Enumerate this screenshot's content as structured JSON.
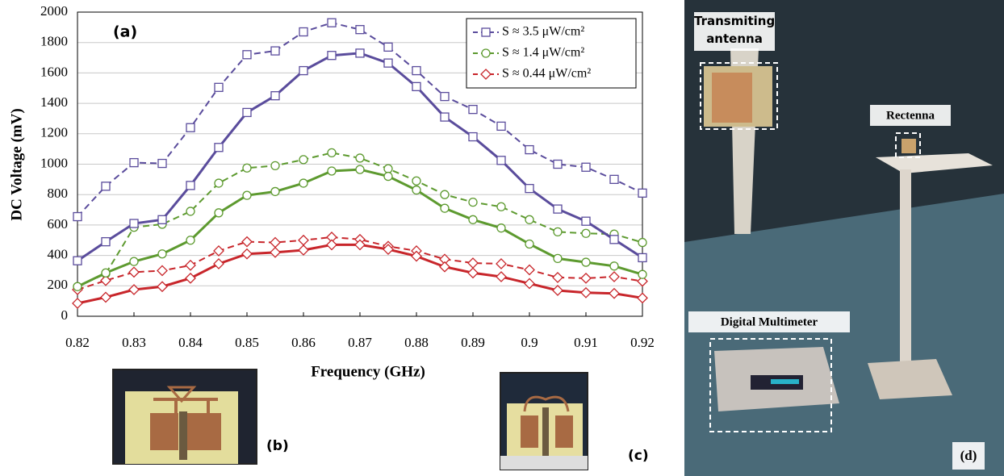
{
  "chart_data": {
    "type": "line",
    "panel_label": "(a)",
    "x_label": "Frequency (GHz)",
    "y_label": "DC Voltage (mV)",
    "x": [
      0.82,
      0.825,
      0.83,
      0.835,
      0.84,
      0.845,
      0.85,
      0.855,
      0.86,
      0.865,
      0.87,
      0.875,
      0.88,
      0.885,
      0.89,
      0.895,
      0.9,
      0.905,
      0.91,
      0.915,
      0.92
    ],
    "xlim": [
      0.82,
      0.92
    ],
    "xticks": [
      0.82,
      0.83,
      0.84,
      0.85,
      0.86,
      0.87,
      0.88,
      0.89,
      0.9,
      0.91,
      0.92
    ],
    "ylim": [
      0,
      2000
    ],
    "yticks": [
      0,
      200,
      400,
      600,
      800,
      1000,
      1200,
      1400,
      1600,
      1800,
      2000
    ],
    "grid": true,
    "legend": "upper-right",
    "series": [
      {
        "name": "S ≈ 3.5 μW/cm²",
        "color": "#5a4c9c",
        "marker": "square",
        "dash": true,
        "values": [
          655,
          855,
          1010,
          1005,
          1240,
          1505,
          1720,
          1745,
          1870,
          1930,
          1885,
          1770,
          1615,
          1445,
          1360,
          1250,
          1095,
          1000,
          980,
          900,
          810
        ]
      },
      {
        "name": "S ≈ 1.4 μW/cm²",
        "color": "#5d9a2f",
        "marker": "circle",
        "dash": true,
        "values": [
          195,
          280,
          585,
          605,
          690,
          875,
          975,
          990,
          1030,
          1075,
          1040,
          970,
          890,
          800,
          750,
          720,
          635,
          555,
          545,
          540,
          485
        ]
      },
      {
        "name": "S ≈ 0.44 μW/cm²",
        "color": "#c8262b",
        "marker": "diamond",
        "dash": true,
        "values": [
          175,
          235,
          290,
          300,
          335,
          430,
          490,
          485,
          500,
          520,
          505,
          460,
          430,
          375,
          350,
          345,
          305,
          255,
          250,
          260,
          230
        ]
      },
      {
        "color": "#5a4c9c",
        "marker": "square",
        "dash": false,
        "values": [
          365,
          490,
          610,
          635,
          860,
          1110,
          1340,
          1450,
          1615,
          1715,
          1730,
          1665,
          1510,
          1310,
          1180,
          1025,
          840,
          705,
          625,
          505,
          385
        ]
      },
      {
        "color": "#5d9a2f",
        "marker": "circle",
        "dash": false,
        "values": [
          195,
          285,
          360,
          410,
          500,
          680,
          795,
          820,
          875,
          955,
          965,
          920,
          830,
          710,
          635,
          580,
          475,
          380,
          355,
          330,
          275
        ]
      },
      {
        "color": "#c8262b",
        "marker": "diamond",
        "dash": false,
        "values": [
          85,
          125,
          175,
          195,
          250,
          345,
          410,
          420,
          435,
          470,
          470,
          440,
          395,
          325,
          285,
          260,
          215,
          170,
          155,
          150,
          120
        ]
      }
    ]
  },
  "photos": {
    "b": "(b)",
    "c": "(c)",
    "d": "(d)",
    "antenna": "Transmiting antenna",
    "rectenna": "Rectenna",
    "multimeter": "Digital Multimeter"
  }
}
